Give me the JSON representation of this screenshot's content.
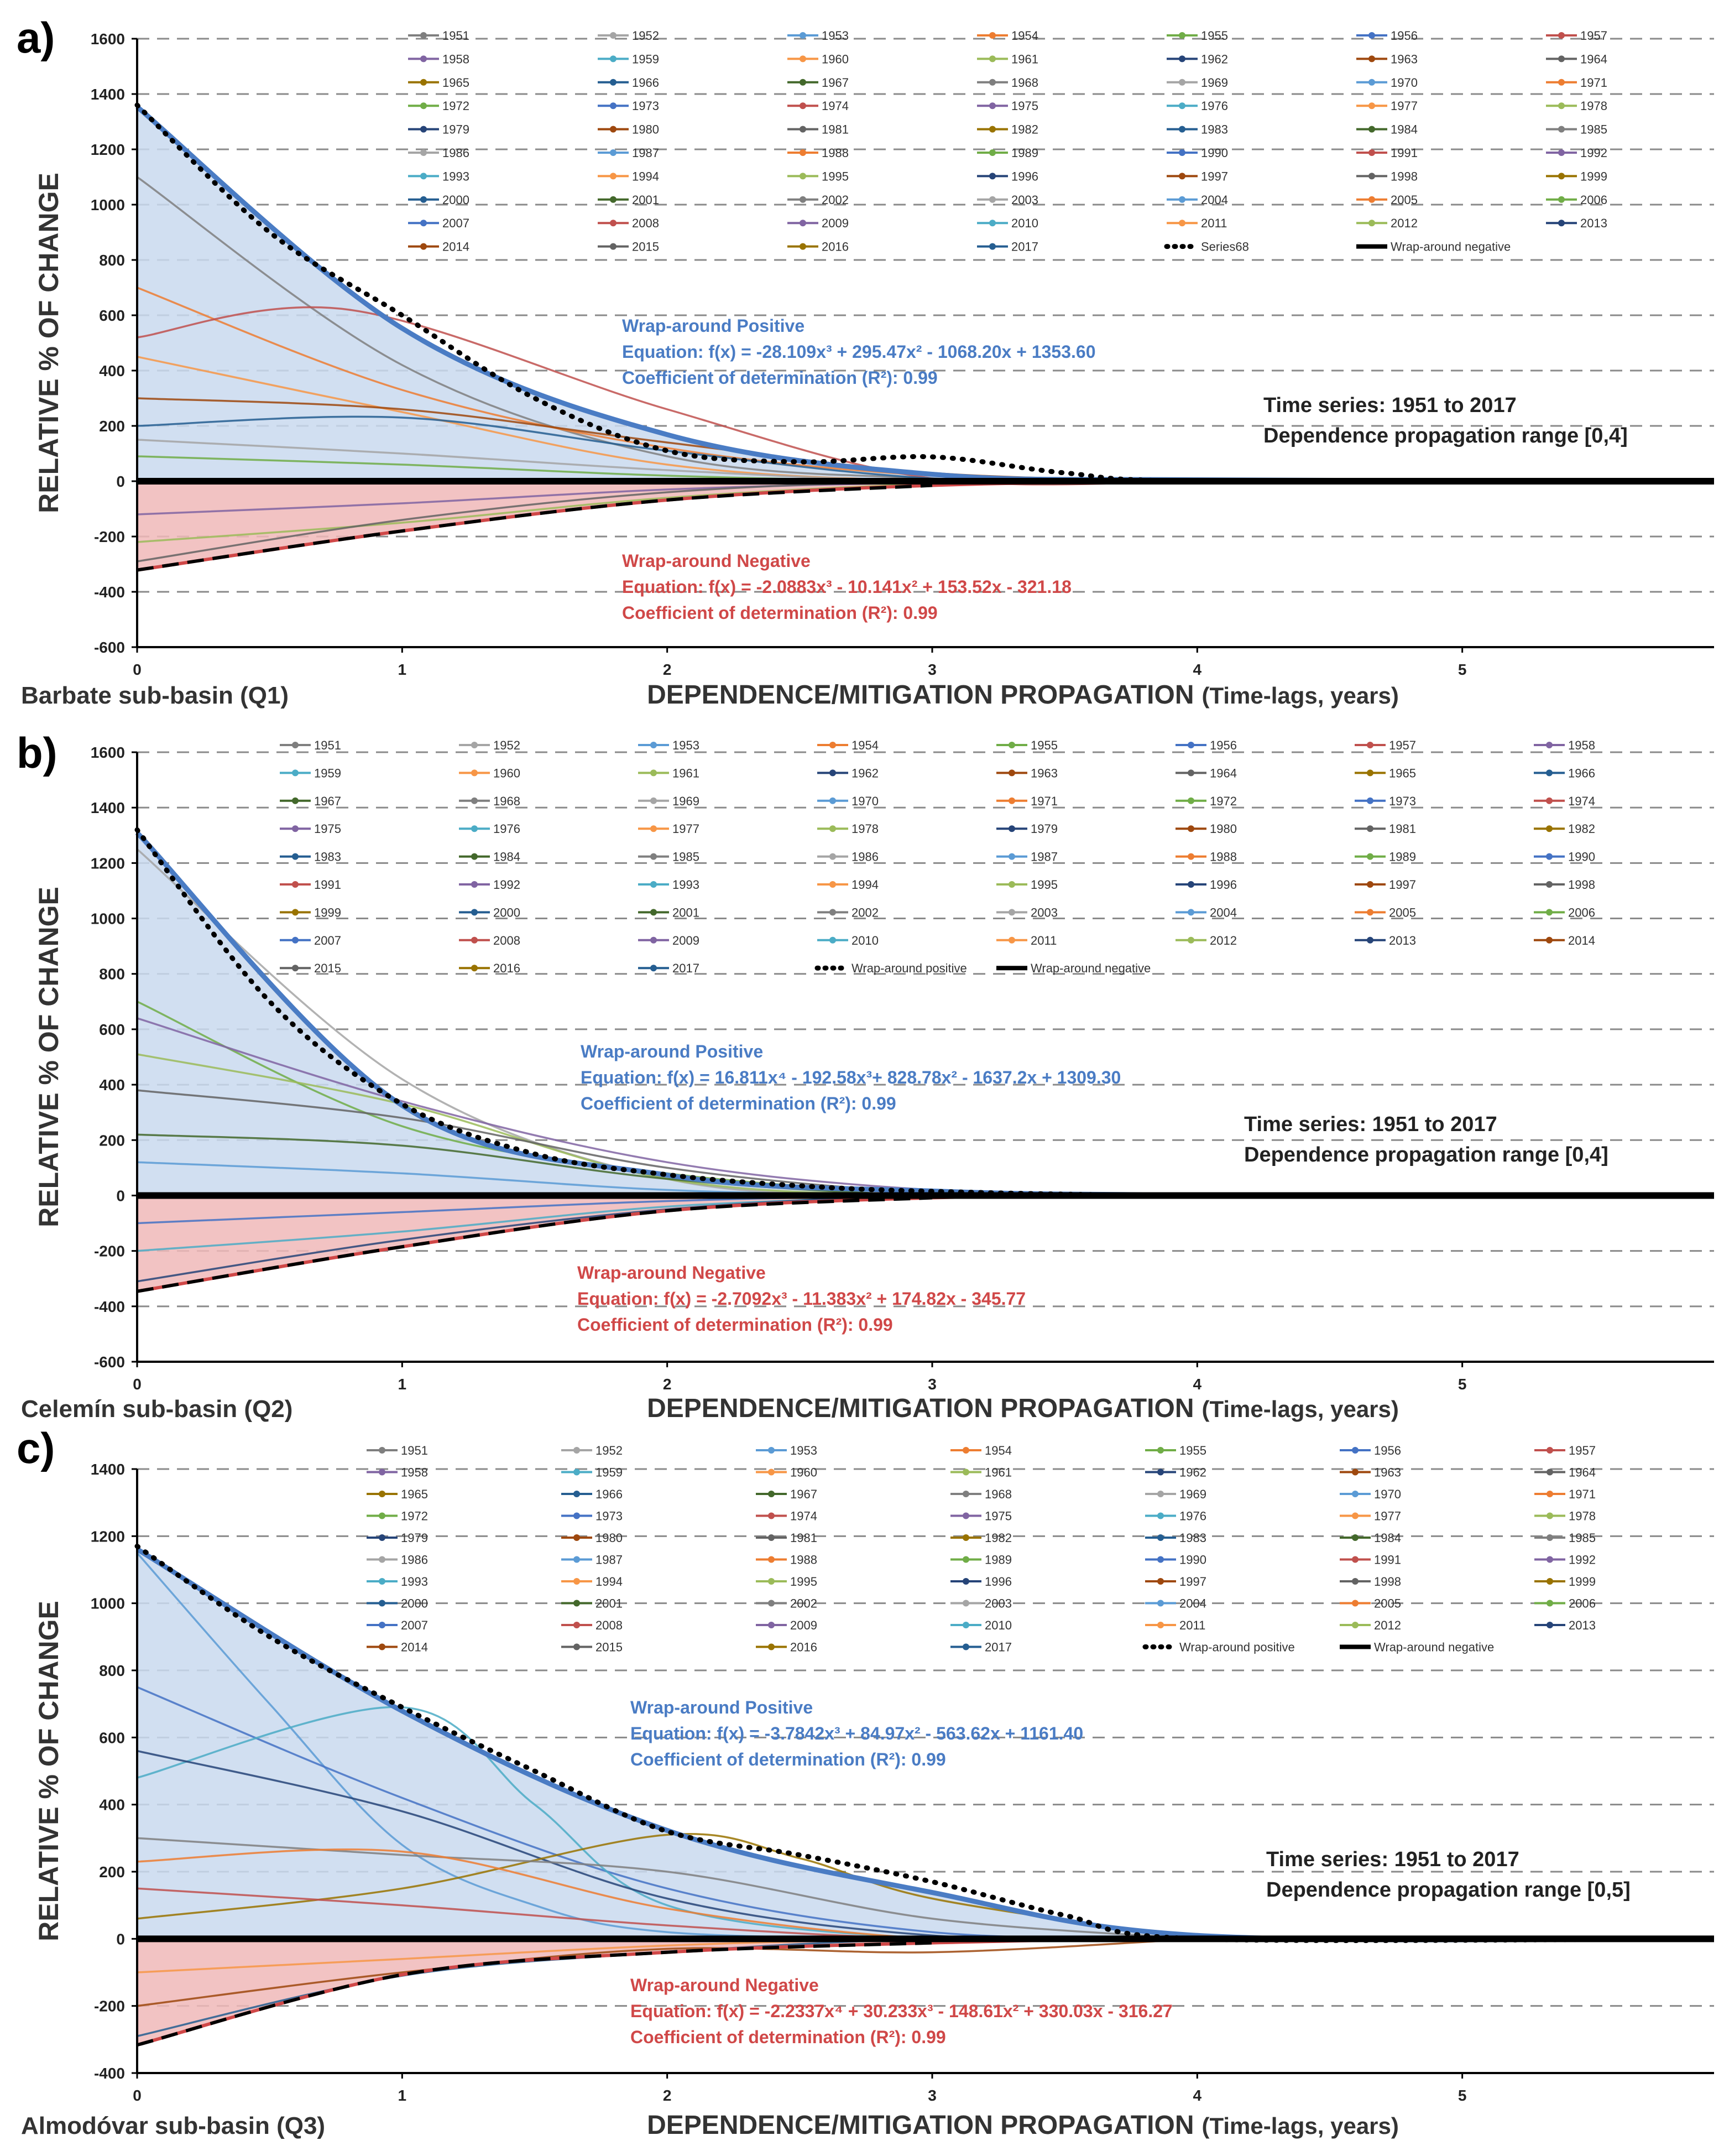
{
  "figure": {
    "colors": {
      "positive": "#4a7cc4",
      "positive_fill": "#c9d9ef",
      "negative": "#d04848",
      "negative_fill": "#f0b8b8",
      "axis": "#000000",
      "grid": "#8a8a8a"
    },
    "series_palette": [
      "#7f7f7f",
      "#a5a5a5",
      "#5b9bd5",
      "#ed7d31",
      "#70ad47",
      "#4472c4",
      "#c0504d",
      "#8064a2",
      "#4bacc6",
      "#f79646",
      "#9bbb59",
      "#264478",
      "#9e480e",
      "#636363",
      "#997300",
      "#255e91",
      "#43682b"
    ]
  },
  "chart_data": [
    {
      "id": "a",
      "type": "line",
      "panel_label": "a)",
      "basin_label": "Barbate sub-basin (Q1)",
      "xlabel": "DEPENDENCE/MITIGATION PROPAGATION",
      "xlabel_suffix": "(Time-lags, years)",
      "ylabel": "RELATIVE % OF CHANGE",
      "xlim": [
        0,
        5.95
      ],
      "ylim": [
        -600,
        1600
      ],
      "xticks": [
        0,
        1,
        2,
        3,
        4,
        5
      ],
      "yticks": [
        1600,
        1400,
        1200,
        1000,
        800,
        600,
        400,
        200,
        0,
        -200,
        -400,
        -600
      ],
      "grid": true,
      "legend_placement": "top",
      "legend_columns": 7,
      "legend": [
        "1951",
        "1952",
        "1953",
        "1954",
        "1955",
        "1956",
        "1957",
        "1958",
        "1959",
        "1960",
        "1961",
        "1962",
        "1963",
        "1964",
        "1965",
        "1966",
        "1967",
        "1968",
        "1969",
        "1970",
        "1971",
        "1972",
        "1973",
        "1974",
        "1975",
        "1976",
        "1977",
        "1978",
        "1979",
        "1980",
        "1981",
        "1982",
        "1983",
        "1984",
        "1985",
        "1986",
        "1987",
        "1988",
        "1989",
        "1990",
        "1991",
        "1992",
        "1993",
        "1994",
        "1995",
        "1996",
        "1997",
        "1998",
        "1999",
        "2000",
        "2001",
        "2002",
        "2003",
        "2004",
        "2005",
        "2006",
        "2007",
        "2008",
        "2009",
        "2010",
        "2011",
        "2012",
        "2013",
        "2014",
        "2015",
        "2016",
        "2017",
        "Series68",
        "Wrap-around negative"
      ],
      "envelope_positive": {
        "x": [
          0,
          1,
          2,
          3,
          4,
          5.9
        ],
        "y": [
          1353.6,
          552.8,
          168.5,
          25.0,
          5.0,
          0
        ]
      },
      "envelope_negative": {
        "x": [
          0,
          1,
          2,
          3,
          4,
          5.9
        ],
        "y": [
          -321.2,
          -180.1,
          -68.0,
          -15.0,
          -3.0,
          0
        ]
      },
      "series68": {
        "x": [
          0,
          0.5,
          1,
          1.5,
          2,
          2.5,
          3,
          3.5,
          4,
          5.9
        ],
        "y": [
          1360,
          900,
          600,
          300,
          110,
          70,
          88,
          30,
          0,
          0
        ]
      },
      "year_curves": [
        {
          "x": [
            0,
            1,
            2,
            3,
            4
          ],
          "y": [
            1100,
            420,
            90,
            10,
            0
          ]
        },
        {
          "x": [
            0,
            1,
            2,
            3,
            4
          ],
          "y": [
            700,
            330,
            120,
            20,
            0
          ]
        },
        {
          "x": [
            0,
            0.8,
            2,
            3,
            4
          ],
          "y": [
            520,
            620,
            260,
            10,
            0
          ]
        },
        {
          "x": [
            0,
            1,
            2,
            3,
            4
          ],
          "y": [
            450,
            250,
            60,
            0,
            0
          ]
        },
        {
          "x": [
            0,
            1,
            2,
            3,
            4
          ],
          "y": [
            300,
            260,
            140,
            30,
            0
          ]
        },
        {
          "x": [
            0,
            1,
            2,
            3,
            4
          ],
          "y": [
            200,
            230,
            110,
            10,
            0
          ]
        },
        {
          "x": [
            0,
            1,
            2,
            3,
            4
          ],
          "y": [
            150,
            100,
            40,
            0,
            0
          ]
        },
        {
          "x": [
            0,
            1,
            2,
            3,
            4
          ],
          "y": [
            90,
            60,
            20,
            0,
            0
          ]
        },
        {
          "x": [
            0,
            1,
            2,
            3,
            4
          ],
          "y": [
            -120,
            -80,
            -30,
            -5,
            0
          ]
        },
        {
          "x": [
            0,
            1,
            2,
            3,
            4
          ],
          "y": [
            -220,
            -150,
            -60,
            -10,
            0
          ]
        },
        {
          "x": [
            0,
            1,
            2,
            3,
            4
          ],
          "y": [
            -290,
            -140,
            -40,
            0,
            0
          ]
        }
      ],
      "annotations": {
        "positive": [
          "Wrap-around Positive",
          "Equation: f(x) = -28.109x³ + 295.47x² - 1068.20x + 1353.60",
          "Coefficient of determination (R²): 0.99"
        ],
        "negative": [
          "Wrap-around Negative",
          "Equation: f(x) = -2.0883x³ - 10.141x² + 153.52x - 321.18",
          "Coefficient of determination (R²): 0.99"
        ],
        "info": [
          "Time series: 1951 to 2017",
          "Dependence propagation range [0,4]"
        ]
      }
    },
    {
      "id": "b",
      "type": "line",
      "panel_label": "b)",
      "basin_label": "Celemín sub-basin (Q2)",
      "xlabel": "DEPENDENCE/MITIGATION PROPAGATION",
      "xlabel_suffix": "(Time-lags, years)",
      "ylabel": "RELATIVE % OF CHANGE",
      "xlim": [
        0,
        5.95
      ],
      "ylim": [
        -600,
        1600
      ],
      "xticks": [
        0,
        1,
        2,
        3,
        4,
        5
      ],
      "yticks": [
        1600,
        1400,
        1200,
        1000,
        800,
        600,
        400,
        200,
        0,
        -200,
        -400,
        -600
      ],
      "grid": true,
      "legend_placement": "top",
      "legend_columns": 8,
      "legend": [
        "1951",
        "1952",
        "1953",
        "1954",
        "1955",
        "1956",
        "1957",
        "1958",
        "1959",
        "1960",
        "1961",
        "1962",
        "1963",
        "1964",
        "1965",
        "1966",
        "1967",
        "1968",
        "1969",
        "1970",
        "1971",
        "1972",
        "1973",
        "1974",
        "1975",
        "1976",
        "1977",
        "1978",
        "1979",
        "1980",
        "1981",
        "1982",
        "1983",
        "1984",
        "1985",
        "1986",
        "1987",
        "1988",
        "1989",
        "1990",
        "1991",
        "1992",
        "1993",
        "1994",
        "1995",
        "1996",
        "1997",
        "1998",
        "1999",
        "2000",
        "2001",
        "2002",
        "2003",
        "2004",
        "2005",
        "2006",
        "2007",
        "2008",
        "2009",
        "2010",
        "2011",
        "2012",
        "2013",
        "2014",
        "2015",
        "2016",
        "2017",
        "Wrap-around positive",
        "Wrap-around negative"
      ],
      "envelope_positive": {
        "x": [
          0,
          1,
          2,
          3,
          4,
          5.9
        ],
        "y": [
          1309.3,
          325.1,
          73.6,
          16.0,
          2.0,
          0
        ]
      },
      "envelope_negative": {
        "x": [
          0,
          1,
          2,
          3,
          4,
          5.9
        ],
        "y": [
          -345.8,
          -185.0,
          -55.0,
          -8.0,
          0,
          0
        ]
      },
      "series68": {
        "x": [
          0,
          0.5,
          1,
          1.5,
          2,
          2.5,
          3,
          4,
          5.9
        ],
        "y": [
          1320,
          700,
          330,
          150,
          75,
          35,
          15,
          0,
          0
        ]
      },
      "year_curves": [
        {
          "x": [
            0,
            1,
            2,
            3,
            4
          ],
          "y": [
            1250,
            420,
            60,
            0,
            0
          ]
        },
        {
          "x": [
            0,
            1,
            2,
            3,
            4
          ],
          "y": [
            700,
            250,
            80,
            10,
            0
          ]
        },
        {
          "x": [
            0,
            1,
            2,
            3,
            4
          ],
          "y": [
            640,
            340,
            120,
            20,
            0
          ]
        },
        {
          "x": [
            0,
            1,
            2,
            3,
            4
          ],
          "y": [
            510,
            330,
            60,
            0,
            0
          ]
        },
        {
          "x": [
            0,
            1,
            2,
            3,
            4
          ],
          "y": [
            380,
            280,
            100,
            10,
            0
          ]
        },
        {
          "x": [
            0,
            1,
            2,
            3,
            4
          ],
          "y": [
            220,
            180,
            60,
            0,
            0
          ]
        },
        {
          "x": [
            0,
            1,
            2,
            3,
            4
          ],
          "y": [
            120,
            80,
            20,
            0,
            0
          ]
        },
        {
          "x": [
            0,
            1,
            2,
            3,
            4
          ],
          "y": [
            -100,
            -60,
            -20,
            0,
            0
          ]
        },
        {
          "x": [
            0,
            1,
            2,
            3,
            4
          ],
          "y": [
            -200,
            -130,
            -40,
            -5,
            0
          ]
        },
        {
          "x": [
            0,
            1,
            2,
            3,
            4
          ],
          "y": [
            -310,
            -160,
            -50,
            0,
            0
          ]
        }
      ],
      "annotations": {
        "positive": [
          "Wrap-around Positive",
          "Equation: f(x) = 16.811x⁴ - 192.58x³+ 828.78x² - 1637.2x + 1309.30",
          "Coefficient of determination (R²): 0.99"
        ],
        "negative": [
          "Wrap-around Negative",
          "Equation: f(x) = -2.7092x³ - 11.383x² + 174.82x - 345.77",
          "Coefficient of determination (R²): 0.99"
        ],
        "info": [
          "Time series: 1951 to 2017",
          "Dependence propagation range [0,4]"
        ]
      }
    },
    {
      "id": "c",
      "type": "line",
      "panel_label": "c)",
      "basin_label": "Almodóvar sub-basin (Q3)",
      "xlabel": "DEPENDENCE/MITIGATION PROPAGATION",
      "xlabel_suffix": "(Time-lags, years)",
      "ylabel": "RELATIVE % OF CHANGE",
      "xlim": [
        0,
        5.95
      ],
      "ylim": [
        -400,
        1400
      ],
      "xticks": [
        0,
        1,
        2,
        3,
        4,
        5
      ],
      "yticks": [
        1400,
        1200,
        1000,
        800,
        600,
        400,
        200,
        0,
        -200,
        -400
      ],
      "grid": true,
      "legend_placement": "top",
      "legend_columns": 7,
      "legend": [
        "1951",
        "1952",
        "1953",
        "1954",
        "1955",
        "1956",
        "1957",
        "1958",
        "1959",
        "1960",
        "1961",
        "1962",
        "1963",
        "1964",
        "1965",
        "1966",
        "1967",
        "1968",
        "1969",
        "1970",
        "1971",
        "1972",
        "1973",
        "1974",
        "1975",
        "1976",
        "1977",
        "1978",
        "1979",
        "1980",
        "1981",
        "1982",
        "1983",
        "1984",
        "1985",
        "1986",
        "1987",
        "1988",
        "1989",
        "1990",
        "1991",
        "1992",
        "1993",
        "1994",
        "1995",
        "1996",
        "1997",
        "1998",
        "1999",
        "2000",
        "2001",
        "2002",
        "2003",
        "2004",
        "2005",
        "2006",
        "2007",
        "2008",
        "2009",
        "2010",
        "2011",
        "2012",
        "2013",
        "2014",
        "2015",
        "2016",
        "2017",
        "Wrap-around positive",
        "Wrap-around negative"
      ],
      "envelope_positive": {
        "x": [
          0,
          1,
          2,
          3,
          4,
          5.9
        ],
        "y": [
          1161.4,
          679.0,
          323.0,
          138.0,
          10.0,
          0
        ]
      },
      "envelope_negative": {
        "x": [
          0,
          1,
          2,
          3,
          4,
          5.9
        ],
        "y": [
          -316.3,
          -107.0,
          -40.0,
          -12.0,
          0,
          0
        ]
      },
      "series68": {
        "x": [
          0,
          0.5,
          1,
          1.5,
          2,
          2.5,
          3,
          3.5,
          4,
          5.9
        ],
        "y": [
          1170,
          900,
          690,
          500,
          320,
          250,
          170,
          70,
          0,
          0
        ]
      },
      "year_curves": [
        {
          "x": [
            0,
            0.5,
            1,
            1.5,
            2,
            3,
            4
          ],
          "y": [
            1150,
            700,
            280,
            100,
            20,
            0,
            0
          ]
        },
        {
          "x": [
            0,
            1,
            2,
            3,
            4
          ],
          "y": [
            750,
            420,
            150,
            20,
            0
          ]
        },
        {
          "x": [
            0,
            1,
            1.5,
            2,
            3,
            4
          ],
          "y": [
            480,
            690,
            400,
            100,
            0,
            0
          ]
        },
        {
          "x": [
            0,
            1,
            2,
            3,
            4
          ],
          "y": [
            560,
            380,
            120,
            10,
            0
          ]
        },
        {
          "x": [
            0,
            1,
            2,
            2.5,
            3,
            4
          ],
          "y": [
            60,
            150,
            310,
            240,
            120,
            0
          ]
        },
        {
          "x": [
            0,
            1,
            2,
            3,
            4
          ],
          "y": [
            300,
            250,
            200,
            60,
            0
          ]
        },
        {
          "x": [
            0,
            1,
            2,
            3,
            4
          ],
          "y": [
            230,
            260,
            90,
            0,
            0
          ]
        },
        {
          "x": [
            0,
            1,
            2,
            3,
            4
          ],
          "y": [
            150,
            100,
            40,
            0,
            0
          ]
        },
        {
          "x": [
            0,
            1,
            2,
            3,
            4
          ],
          "y": [
            -100,
            -60,
            -20,
            0,
            0
          ]
        },
        {
          "x": [
            0,
            1,
            2,
            3,
            4
          ],
          "y": [
            -200,
            -100,
            -30,
            -40,
            0
          ]
        },
        {
          "x": [
            0,
            1,
            2,
            3,
            4
          ],
          "y": [
            -290,
            -110,
            -40,
            0,
            0
          ]
        }
      ],
      "annotations": {
        "positive": [
          "Wrap-around Positive",
          "Equation: f(x) = -3.7842x³ + 84.97x² - 563.62x + 1161.40",
          "Coefficient of determination (R²): 0.99"
        ],
        "negative": [
          "Wrap-around Negative",
          "Equation: f(x) = -2.2337x⁴ + 30.233x³ - 148.61x² + 330.03x - 316.27",
          "Coefficient of determination (R²): 0.99"
        ],
        "info": [
          "Time series: 1951 to 2017",
          "Dependence propagation range [0,5]"
        ]
      }
    }
  ]
}
